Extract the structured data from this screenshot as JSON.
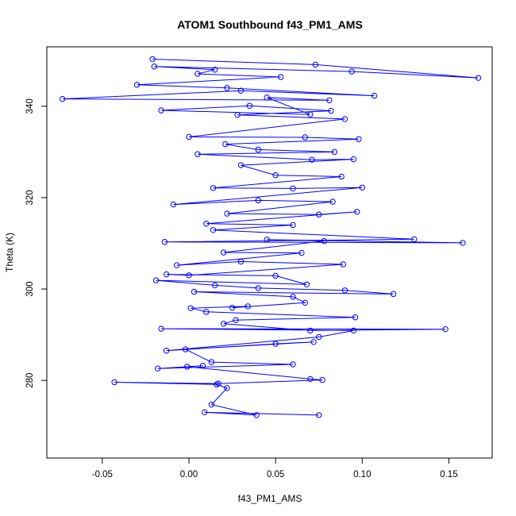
{
  "chart_data": {
    "type": "scatter",
    "title": "ATOM1 Southbound f43_PM1_AMS",
    "xlabel": "f43_PM1_AMS",
    "ylabel": "Theta (K)",
    "xlim": [
      -0.082,
      0.175
    ],
    "ylim": [
      263,
      353
    ],
    "xticks": [
      -0.05,
      0.0,
      0.05,
      0.1,
      0.15
    ],
    "xtick_labels": [
      "-0.05",
      "0.00",
      "0.05",
      "0.10",
      "0.15"
    ],
    "yticks": [
      280,
      300,
      320,
      340
    ],
    "ytick_labels": [
      "280",
      "300",
      "320",
      "340"
    ],
    "color": "#0000ff",
    "marker": "open-circle",
    "connected": true,
    "grid": false,
    "legend": "none",
    "series": [
      {
        "values": [
          [
            -0.021,
            350.3
          ],
          [
            0.073,
            349.1
          ],
          [
            0.167,
            346.2
          ],
          [
            0.094,
            347.6
          ],
          [
            -0.02,
            348.7
          ],
          [
            0.015,
            348.0
          ],
          [
            0.005,
            347.1
          ],
          [
            0.053,
            346.4
          ],
          [
            -0.03,
            344.7
          ],
          [
            0.022,
            344.0
          ],
          [
            0.107,
            342.3
          ],
          [
            0.03,
            343.4
          ],
          [
            -0.073,
            341.6
          ],
          [
            0.081,
            341.3
          ],
          [
            0.045,
            341.9
          ],
          [
            0.07,
            338.2
          ],
          [
            -0.016,
            339.1
          ],
          [
            0.035,
            340.1
          ],
          [
            0.082,
            339.0
          ],
          [
            0.028,
            338.1
          ],
          [
            0.09,
            337.2
          ],
          [
            0.0,
            333.3
          ],
          [
            0.067,
            333.2
          ],
          [
            0.098,
            332.8
          ],
          [
            0.021,
            331.7
          ],
          [
            0.04,
            330.5
          ],
          [
            0.084,
            330.0
          ],
          [
            0.005,
            329.5
          ],
          [
            0.071,
            328.3
          ],
          [
            0.095,
            328.4
          ],
          [
            0.03,
            327.1
          ],
          [
            0.05,
            324.9
          ],
          [
            0.088,
            324.6
          ],
          [
            0.014,
            322.1
          ],
          [
            0.06,
            322.0
          ],
          [
            0.1,
            322.2
          ],
          [
            -0.009,
            318.5
          ],
          [
            0.04,
            319.4
          ],
          [
            0.083,
            319.1
          ],
          [
            0.022,
            316.5
          ],
          [
            0.075,
            316.3
          ],
          [
            0.097,
            316.9
          ],
          [
            0.01,
            314.3
          ],
          [
            0.06,
            314.0
          ],
          [
            0.014,
            312.9
          ],
          [
            0.13,
            310.9
          ],
          [
            -0.014,
            310.3
          ],
          [
            0.158,
            310.1
          ],
          [
            0.045,
            310.8
          ],
          [
            0.078,
            310.5
          ],
          [
            0.02,
            308.0
          ],
          [
            0.065,
            307.9
          ],
          [
            -0.007,
            305.2
          ],
          [
            0.03,
            306.0
          ],
          [
            0.089,
            305.4
          ],
          [
            0.0,
            303.0
          ],
          [
            -0.013,
            303.2
          ],
          [
            0.05,
            302.9
          ],
          [
            0.068,
            301.0
          ],
          [
            -0.019,
            301.9
          ],
          [
            0.015,
            300.8
          ],
          [
            0.04,
            300.2
          ],
          [
            0.09,
            299.7
          ],
          [
            0.118,
            298.9
          ],
          [
            0.003,
            299.4
          ],
          [
            0.06,
            298.3
          ],
          [
            0.067,
            297.0
          ],
          [
            0.025,
            295.9
          ],
          [
            0.034,
            296.2
          ],
          [
            0.001,
            295.8
          ],
          [
            0.01,
            295.0
          ],
          [
            0.096,
            293.8
          ],
          [
            0.027,
            293.2
          ],
          [
            0.02,
            292.4
          ],
          [
            0.07,
            290.9
          ],
          [
            0.148,
            291.2
          ],
          [
            -0.016,
            291.3
          ],
          [
            0.095,
            290.9
          ],
          [
            0.075,
            289.5
          ],
          [
            -0.013,
            286.5
          ],
          [
            0.05,
            288.0
          ],
          [
            0.072,
            288.4
          ],
          [
            -0.002,
            286.8
          ],
          [
            0.013,
            284.0
          ],
          [
            0.06,
            283.5
          ],
          [
            -0.018,
            282.6
          ],
          [
            0.008,
            283.2
          ],
          [
            -0.001,
            283.0
          ],
          [
            0.07,
            280.3
          ],
          [
            0.077,
            280.1
          ],
          [
            0.017,
            279.3
          ],
          [
            -0.043,
            279.6
          ],
          [
            0.016,
            279.1
          ],
          [
            0.022,
            278.3
          ],
          [
            0.013,
            274.7
          ],
          [
            0.039,
            272.4
          ],
          [
            0.009,
            273.0
          ],
          [
            0.075,
            272.4
          ]
        ]
      }
    ]
  }
}
